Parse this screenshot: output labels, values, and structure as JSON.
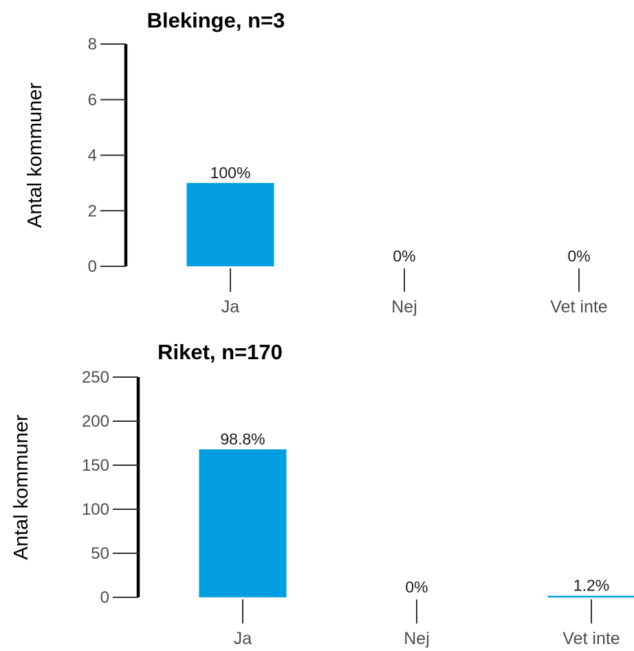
{
  "chart_data": [
    {
      "type": "bar",
      "title": "Blekinge, n=3",
      "ylabel": "Antal kommuner",
      "xlabel": "",
      "categories": [
        "Ja",
        "Nej",
        "Vet inte"
      ],
      "values": [
        3,
        0,
        0
      ],
      "data_labels": [
        "100%",
        "0%",
        "0%"
      ],
      "ylim": [
        0,
        8
      ],
      "yticks": [
        0,
        2,
        4,
        6,
        8
      ],
      "ytick_labels": [
        "0",
        "2",
        "4",
        "6",
        "8"
      ],
      "bar_color": "#009de0",
      "grid": false,
      "legend": "none"
    },
    {
      "type": "bar",
      "title": "Riket, n=170",
      "ylabel": "Antal kommuner",
      "xlabel": "",
      "categories": [
        "Ja",
        "Nej",
        "Vet inte"
      ],
      "values": [
        168,
        0,
        2
      ],
      "data_labels": [
        "98.8%",
        "0%",
        "1.2%"
      ],
      "ylim": [
        0,
        250
      ],
      "yticks": [
        0,
        50,
        100,
        150,
        200,
        250
      ],
      "ytick_labels": [
        "0",
        "50",
        "100",
        "150",
        "200",
        "250"
      ],
      "bar_color": "#009de0",
      "grid": false,
      "legend": "none"
    }
  ]
}
